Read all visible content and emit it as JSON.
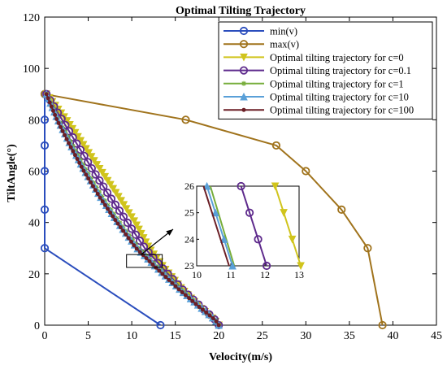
{
  "chart_data": {
    "type": "line",
    "title": "Optimal Tilting Trajectory",
    "xlabel": "Velocity(m/s)",
    "ylabel": "TiltAngle(°)",
    "xlim": [
      0,
      45
    ],
    "ylim": [
      0,
      120
    ],
    "xticks": [
      0,
      5,
      10,
      15,
      20,
      25,
      30,
      35,
      40,
      45
    ],
    "yticks": [
      0,
      20,
      40,
      60,
      80,
      100,
      120
    ],
    "grid": false,
    "legend_position": "top-right",
    "series": [
      {
        "name": "min(v)",
        "color": "#2a4dbd",
        "marker": "circle",
        "x": [
          0,
          0,
          0,
          0,
          0,
          0,
          13.3
        ],
        "y": [
          90,
          80,
          70,
          60,
          45,
          30,
          0
        ]
      },
      {
        "name": "max(v)",
        "color": "#a0731c",
        "marker": "circle",
        "x": [
          0,
          16.2,
          26.6,
          30.0,
          34.1,
          37.1,
          38.8
        ],
        "y": [
          90,
          80,
          70,
          60,
          45,
          30,
          0
        ]
      },
      {
        "name": "Optimal tilting trajectory for c=0",
        "color": "#d0c41c",
        "marker": "triangle-down",
        "x": [
          0.2,
          2.5,
          4.5,
          6.5,
          8.5,
          10.4,
          12.0,
          13.8,
          15.8,
          17.8,
          19.5,
          20.0
        ],
        "y": [
          90,
          80,
          70,
          60,
          50,
          40,
          30,
          22,
          14,
          7,
          2,
          0
        ]
      },
      {
        "name": "Optimal tilting trajectory for c=0.1",
        "color": "#5e2a8c",
        "marker": "circle",
        "x": [
          0.2,
          2.0,
          3.8,
          5.6,
          7.5,
          9.5,
          11.5,
          13.6,
          15.8,
          18.0,
          19.6,
          20.0
        ],
        "y": [
          90,
          80,
          70,
          60,
          50,
          40,
          30,
          22,
          14,
          7,
          2,
          0
        ]
      },
      {
        "name": "Optimal tilting trajectory for c=1",
        "color": "#77ad3a",
        "marker": "asterisk",
        "x": [
          0.2,
          1.6,
          3.2,
          4.8,
          6.6,
          8.6,
          10.8,
          13.2,
          15.6,
          17.9,
          19.6,
          20.0
        ],
        "y": [
          90,
          80,
          70,
          60,
          50,
          40,
          30,
          22,
          14,
          7,
          2,
          0
        ]
      },
      {
        "name": "Optimal tilting trajectory for c=10",
        "color": "#5aa0d8",
        "marker": "triangle-up",
        "x": [
          0.2,
          1.5,
          3.0,
          4.6,
          6.4,
          8.4,
          10.6,
          13.0,
          15.5,
          17.9,
          19.6,
          20.0
        ],
        "y": [
          90,
          80,
          70,
          60,
          50,
          40,
          30,
          22,
          14,
          7,
          2,
          0
        ]
      },
      {
        "name": "Optimal tilting trajectory for c=100",
        "color": "#6b1f26",
        "marker": "point",
        "x": [
          0.2,
          1.4,
          2.9,
          4.5,
          6.3,
          8.3,
          10.5,
          12.9,
          15.4,
          17.8,
          19.6,
          20.0
        ],
        "y": [
          90,
          80,
          70,
          60,
          50,
          40,
          30,
          22,
          14,
          7,
          2,
          0
        ]
      }
    ],
    "inset": {
      "xlim": [
        10,
        13
      ],
      "ylim": [
        23,
        26
      ],
      "xticks": [
        10,
        11,
        12,
        13
      ],
      "yticks": [
        23,
        24,
        25,
        26
      ],
      "xtick_labels": [
        "10",
        "11",
        "12",
        "13"
      ],
      "ytick_labels": [
        "23",
        "24",
        "25",
        "26"
      ],
      "source_region": {
        "xlim": [
          9.4,
          13.5
        ],
        "ylim": [
          22.5,
          27.5
        ]
      },
      "series": [
        {
          "name": "Optimal tilting trajectory for c=0",
          "x": [
            12.3,
            13.05
          ],
          "y": [
            26,
            23
          ]
        },
        {
          "name": "Optimal tilting trajectory for c=0.1",
          "x": [
            11.3,
            12.05
          ],
          "y": [
            26,
            23
          ]
        },
        {
          "name": "Optimal tilting trajectory for c=1",
          "x": [
            10.4,
            11.1
          ],
          "y": [
            26,
            23
          ]
        },
        {
          "name": "Optimal tilting trajectory for c=10",
          "x": [
            10.3,
            11.05
          ],
          "y": [
            26,
            23
          ]
        },
        {
          "name": "Optimal tilting trajectory for c=100",
          "x": [
            10.2,
            10.95
          ],
          "y": [
            26,
            23
          ]
        }
      ]
    }
  }
}
